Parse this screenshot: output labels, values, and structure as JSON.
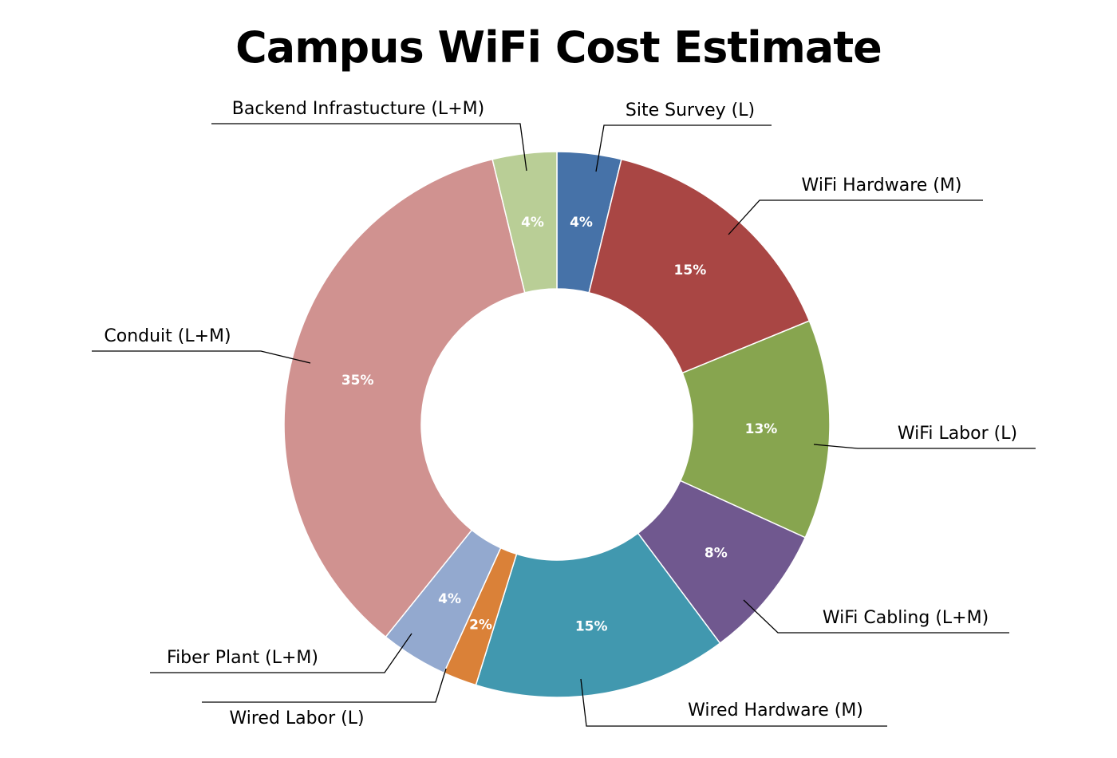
{
  "chart_data": {
    "type": "pie",
    "title": "Campus WiFi Cost Estimate",
    "categories": [
      "Site Survey (L)",
      "WiFi Hardware (M)",
      "WiFi Labor (L)",
      "WiFi Cabling (L+M)",
      "Wired Hardware (M)",
      "Wired Labor (L)",
      "Fiber Plant (L+M)",
      "Conduit (L+M)",
      "Backend Infrastucture (L+M)"
    ],
    "values": [
      3.8,
      15.0,
      13.0,
      8.0,
      15.0,
      2.0,
      4.0,
      35.4,
      3.8
    ],
    "labels": [
      "4%",
      "15%",
      "13%",
      "8%",
      "15%",
      "2%",
      "4%",
      "35%",
      "4%"
    ],
    "colors": [
      "#4672A8",
      "#A94644",
      "#87A54F",
      "#70588F",
      "#4198AF",
      "#DA8138",
      "#93A9CF",
      "#D09290",
      "#B9CE96"
    ],
    "donut": true,
    "legend": "none"
  }
}
